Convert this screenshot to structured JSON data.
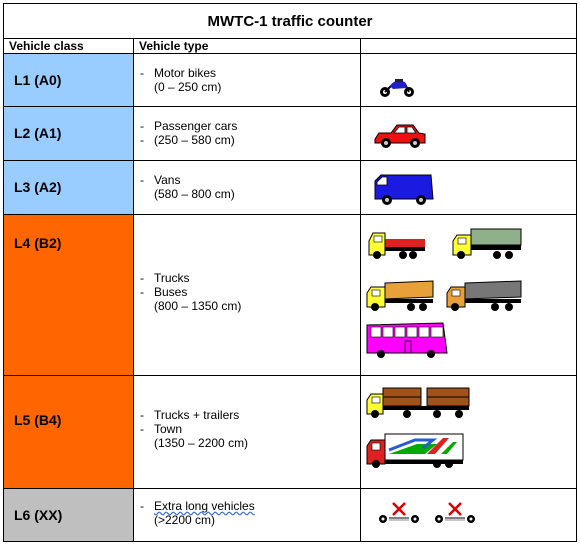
{
  "title": "MWTC-1 traffic counter",
  "headers": {
    "vehicle_class": "Vehicle class",
    "vehicle_type": "Vehicle type",
    "image": ""
  },
  "rows": [
    {
      "class": "L1 (A0)",
      "lines": [
        "Motor bikes",
        "(0 – 250 cm)"
      ],
      "dashes": [
        true,
        false
      ]
    },
    {
      "class": "L2 (A1)",
      "lines": [
        "Passenger cars",
        "(250 – 580 cm)"
      ],
      "dashes": [
        true,
        true
      ]
    },
    {
      "class": "L3 (A2)",
      "lines": [
        "Vans",
        "(580 – 800 cm)"
      ],
      "dashes": [
        true,
        false
      ]
    },
    {
      "class": "L4 (B2)",
      "lines": [
        "Trucks",
        "Buses",
        "(800 – 1350 cm)"
      ],
      "dashes": [
        true,
        true,
        false
      ]
    },
    {
      "class": "L5 (B4)",
      "lines": [
        "Trucks + trailers",
        "Town",
        "(1350 – 2200 cm)"
      ],
      "dashes": [
        true,
        true,
        false
      ]
    },
    {
      "class": "L6 (XX)",
      "lines": [
        "Extra long vehicles",
        "(>2200 cm)"
      ],
      "dashes": [
        true,
        false
      ]
    }
  ],
  "dash": "-",
  "colors": {
    "blue": "#99ccff",
    "orange": "#ff6600",
    "grey": "#bfbfbf"
  },
  "icons": [
    "motorbike-icon",
    "car-icon",
    "van-icon",
    "truck-icon",
    "bus-icon",
    "truck-trailer-icon",
    "long-vehicle-icon"
  ]
}
